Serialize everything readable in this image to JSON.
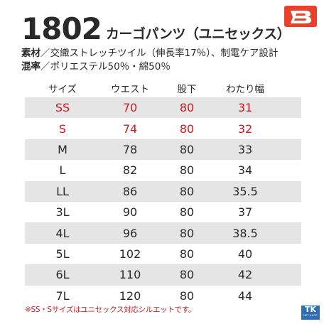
{
  "header": {
    "product_code": "1802",
    "product_name": "カーゴパンツ（ユニセックス）"
  },
  "brand_logo": {
    "icon": "burtle-b-logo-icon",
    "color": "#e8412c"
  },
  "specs": [
    {
      "key": "素材",
      "value": "／交織ストレッチツイル（伸長率17％）、制電ケア設計"
    },
    {
      "key": "混率",
      "value": "／ポリエステル50％・綿50％"
    }
  ],
  "table": {
    "headers": [
      "サイズ",
      "ウエスト",
      "股下",
      "わたり幅"
    ],
    "rows": [
      [
        "SS",
        "70",
        "80",
        "31"
      ],
      [
        "S",
        "74",
        "80",
        "32"
      ],
      [
        "M",
        "78",
        "80",
        "33"
      ],
      [
        "L",
        "82",
        "80",
        "34"
      ],
      [
        "LL",
        "86",
        "80",
        "35.5"
      ],
      [
        "3L",
        "90",
        "80",
        "37"
      ],
      [
        "4L",
        "96",
        "80",
        "38.5"
      ],
      [
        "5L",
        "102",
        "80",
        "40"
      ],
      [
        "6L",
        "110",
        "80",
        "42"
      ],
      [
        "7L",
        "120",
        "80",
        "44"
      ]
    ],
    "highlight_color": "#d4181f",
    "shade_color": "#e5e5e5"
  },
  "footnote": "※SS・Sサイズはユニセックス対応シルエットです。",
  "store_logo": {
    "text": "TK",
    "sub": "NET SHOP",
    "color": "#2f6fb0"
  }
}
